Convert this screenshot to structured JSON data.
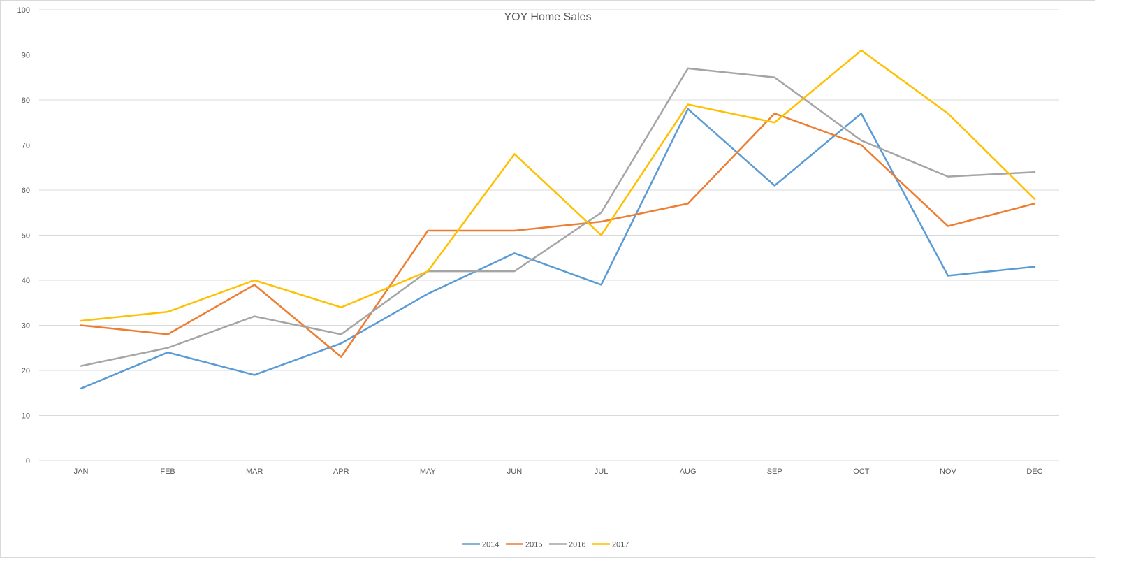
{
  "chart_data": {
    "type": "line",
    "title": "YOY Home Sales",
    "xlabel": "",
    "ylabel": "",
    "ylim": [
      0,
      100
    ],
    "yticks": [
      0,
      10,
      20,
      30,
      40,
      50,
      60,
      70,
      80,
      90,
      100
    ],
    "categories": [
      "JAN",
      "FEB",
      "MAR",
      "APR",
      "MAY",
      "JUN",
      "JUL",
      "AUG",
      "SEP",
      "OCT",
      "NOV",
      "DEC"
    ],
    "grid": true,
    "legend_position": "bottom",
    "series": [
      {
        "name": "2014",
        "color": "#5b9bd5",
        "values": [
          16,
          24,
          19,
          26,
          37,
          46,
          39,
          78,
          61,
          77,
          41,
          43
        ]
      },
      {
        "name": "2015",
        "color": "#ed7d31",
        "values": [
          30,
          28,
          39,
          23,
          51,
          51,
          53,
          57,
          77,
          70,
          52,
          57
        ]
      },
      {
        "name": "2016",
        "color": "#a5a5a5",
        "values": [
          21,
          25,
          32,
          28,
          42,
          42,
          55,
          87,
          85,
          71,
          63,
          64
        ]
      },
      {
        "name": "2017",
        "color": "#ffc000",
        "values": [
          31,
          33,
          40,
          34,
          42,
          68,
          50,
          79,
          75,
          91,
          77,
          58
        ]
      }
    ]
  }
}
